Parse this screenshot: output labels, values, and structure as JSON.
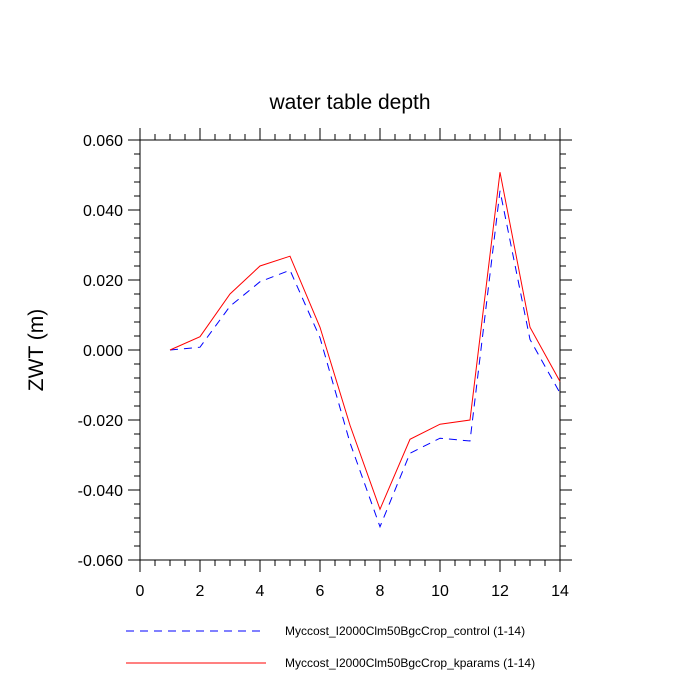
{
  "chart_data": {
    "type": "line",
    "title": "water table depth",
    "xlabel": "",
    "ylabel": "ZWT  (m)",
    "xlim": [
      0,
      14
    ],
    "ylim": [
      -0.06,
      0.06
    ],
    "xticks": [
      0,
      2,
      4,
      6,
      8,
      10,
      12,
      14
    ],
    "xtick_labels": [
      "0",
      "2",
      "4",
      "6",
      "8",
      "10",
      "12",
      "14"
    ],
    "yticks": [
      -0.06,
      -0.04,
      -0.02,
      0.0,
      0.02,
      0.04,
      0.06
    ],
    "ytick_labels": [
      "-0.060",
      "-0.040",
      "-0.020",
      "0.000",
      "0.020",
      "0.040",
      "0.060"
    ],
    "grid": false,
    "legend_position": "bottom",
    "x": [
      1,
      2,
      3,
      4,
      5,
      6,
      7,
      8,
      9,
      10,
      11,
      12,
      13,
      14
    ],
    "series": [
      {
        "name": "Myccost_I2000Clm50BgcCrop_control (1-14)",
        "color": "#0000ff",
        "style": "dashed",
        "values": [
          0.0,
          0.0008,
          0.0125,
          0.0195,
          0.0228,
          0.0035,
          -0.0265,
          -0.0505,
          -0.0295,
          -0.0252,
          -0.026,
          0.0455,
          0.003,
          -0.0123
        ]
      },
      {
        "name": "Myccost_I2000Clm50BgcCrop_kparams (1-14)",
        "color": "#ff0000",
        "style": "solid",
        "values": [
          0.0,
          0.0038,
          0.016,
          0.024,
          0.0268,
          0.0065,
          -0.0215,
          -0.0455,
          -0.0255,
          -0.0212,
          -0.02,
          0.0508,
          0.0065,
          -0.009
        ]
      }
    ]
  }
}
